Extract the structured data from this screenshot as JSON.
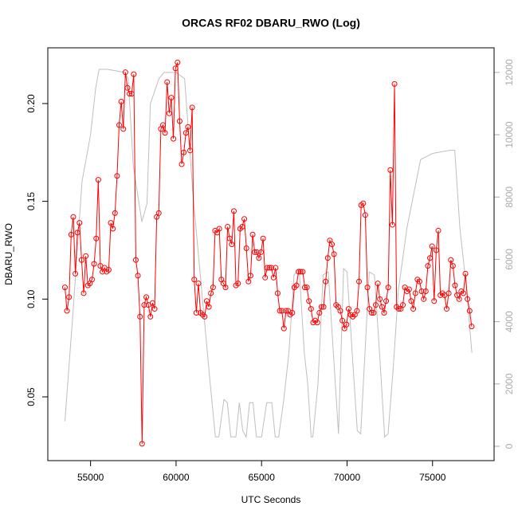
{
  "chart_data": {
    "type": "line",
    "title": "ORCAS RF02 DBARU_RWO (Log)",
    "x_label": "UTC Seconds",
    "y_label": "DBARU_RWO",
    "xlim": [
      52500,
      78600
    ],
    "ylim": [
      0.0174,
      0.2285
    ],
    "y2lim": [
      -460,
      12790
    ],
    "xticks": [
      55000,
      60000,
      65000,
      70000,
      75000
    ],
    "yticks": [
      0.05,
      {
        "value": 0.1,
        "label": "0.10"
      },
      0.15,
      {
        "value": 0.2,
        "label": "0.20"
      }
    ],
    "y2ticks": [
      0,
      2000,
      4000,
      6000,
      8000,
      10000,
      12000
    ],
    "series": [
      {
        "color": "#ff0000",
        "markers": true,
        "x": [
          53500,
          53622,
          53744,
          53866,
          53988,
          54110,
          54232,
          54354,
          54476,
          54598,
          54720,
          54842,
          54964,
          55086,
          55208,
          55330,
          55452,
          55574,
          55696,
          55818,
          55940,
          56062,
          56184,
          56306,
          56428,
          56550,
          56672,
          56794,
          56916,
          57038,
          57160,
          57282,
          57404,
          57526,
          57648,
          57770,
          57892,
          58014,
          58136,
          58258,
          58380,
          58502,
          58624,
          58746,
          58868,
          58990,
          59112,
          59234,
          59356,
          59478,
          59600,
          59722,
          59844,
          59966,
          60088,
          60210,
          60332,
          60454,
          60576,
          60698,
          60820,
          60942,
          61064,
          61186,
          61308,
          61430,
          61552,
          61674,
          61796,
          61918,
          62040,
          62162,
          62284,
          62406,
          62528,
          62650,
          62772,
          62894,
          63016,
          63138,
          63260,
          63382,
          63504,
          63626,
          63748,
          63870,
          63992,
          64114,
          64236,
          64358,
          64480,
          64602,
          64724,
          64846,
          64968,
          65090,
          65212,
          65334,
          65456,
          65578,
          65700,
          65822,
          65944,
          66066,
          66188,
          66310,
          66432,
          66554,
          66676,
          66798,
          66920,
          67042,
          67164,
          67286,
          67408,
          67530,
          67652,
          67774,
          67896,
          68018,
          68140,
          68262,
          68384,
          68506,
          68628,
          68750,
          68872,
          68994,
          69116,
          69238,
          69360,
          69482,
          69604,
          69726,
          69848,
          69970,
          70092,
          70214,
          70336,
          70458,
          70580,
          70702,
          70824,
          70946,
          71068,
          71190,
          71312,
          71434,
          71556,
          71678,
          71800,
          71922,
          72044,
          72166,
          72288,
          72410,
          72532,
          72654,
          72776,
          72898,
          73020,
          73142,
          73264,
          73386,
          73508,
          73630,
          73752,
          73874,
          73996,
          74118,
          74240,
          74362,
          74484,
          74606,
          74728,
          74850,
          74972,
          75094,
          75216,
          75338,
          75460,
          75582,
          75704,
          75826,
          75948,
          76070,
          76192,
          76314,
          76436,
          76558,
          76680,
          76802,
          76924,
          77046,
          77168,
          77290
        ],
        "values": [
          0.106,
          0.094,
          0.101,
          0.133,
          0.142,
          0.113,
          0.134,
          0.139,
          0.12,
          0.103,
          0.122,
          0.107,
          0.108,
          0.11,
          0.118,
          0.131,
          0.161,
          0.117,
          0.114,
          0.116,
          0.114,
          0.115,
          0.139,
          0.136,
          0.144,
          0.163,
          0.189,
          0.201,
          0.187,
          0.216,
          0.208,
          0.205,
          0.205,
          0.215,
          0.12,
          0.112,
          0.091,
          0.026,
          0.097,
          0.101,
          0.097,
          0.091,
          0.098,
          0.095,
          0.142,
          0.144,
          0.187,
          0.189,
          0.185,
          0.211,
          0.195,
          0.203,
          0.182,
          0.218,
          0.221,
          0.191,
          0.169,
          0.175,
          0.185,
          0.188,
          0.176,
          0.198,
          0.11,
          0.093,
          0.108,
          0.093,
          0.092,
          0.091,
          0.099,
          0.096,
          0.103,
          0.106,
          0.135,
          0.134,
          0.136,
          0.11,
          0.108,
          0.106,
          0.137,
          0.131,
          0.128,
          0.145,
          0.107,
          0.108,
          0.136,
          0.137,
          0.141,
          0.126,
          0.109,
          0.112,
          0.133,
          0.124,
          0.124,
          0.121,
          0.124,
          0.131,
          0.111,
          0.116,
          0.116,
          0.116,
          0.111,
          0.116,
          0.103,
          0.094,
          0.094,
          0.085,
          0.094,
          0.094,
          0.092,
          0.093,
          0.106,
          0.107,
          0.114,
          0.114,
          0.114,
          0.106,
          0.106,
          0.099,
          0.095,
          0.088,
          0.089,
          0.088,
          0.093,
          0.096,
          0.096,
          0.109,
          0.121,
          0.13,
          0.128,
          0.123,
          0.097,
          0.096,
          0.094,
          0.089,
          0.085,
          0.087,
          0.095,
          0.092,
          0.091,
          0.092,
          0.094,
          0.109,
          0.148,
          0.149,
          0.143,
          0.106,
          0.095,
          0.093,
          0.093,
          0.097,
          0.108,
          0.1,
          0.096,
          0.093,
          0.099,
          0.106,
          0.166,
          0.138,
          0.21,
          0.096,
          0.095,
          0.095,
          0.097,
          0.106,
          0.104,
          0.105,
          0.099,
          0.095,
          0.103,
          0.11,
          0.109,
          0.104,
          0.1,
          0.104,
          0.117,
          0.121,
          0.127,
          0.099,
          0.125,
          0.135,
          0.102,
          0.103,
          0.102,
          0.095,
          0.103,
          0.12,
          0.117,
          0.107,
          0.102,
          0.1,
          0.104,
          0.103,
          0.113,
          0.1,
          0.094,
          0.086
        ]
      },
      {
        "color": "#bebebe",
        "axis": "y2",
        "markers": false,
        "x": [
          53500,
          54000,
          54500,
          55000,
          55300,
          55500,
          56000,
          57000,
          57200,
          57500,
          58000,
          58300,
          58500,
          59000,
          59300,
          60000,
          60500,
          61000,
          61500,
          62000,
          62300,
          62500,
          62800,
          63000,
          63200,
          63500,
          63700,
          63900,
          64100,
          64300,
          64500,
          64700,
          65000,
          65300,
          65600,
          65800,
          66000,
          66300,
          66600,
          66900,
          67200,
          67500,
          67700,
          67900,
          68000,
          68300,
          68600,
          68900,
          69200,
          69500,
          69800,
          70000,
          70300,
          70600,
          70800,
          71000,
          71300,
          71600,
          71900,
          72200,
          72400,
          72700,
          73000,
          73500,
          74300,
          75000,
          76000,
          76300,
          76600,
          77000,
          77300
        ],
        "values": [
          800,
          4500,
          8500,
          10000,
          11500,
          12100,
          12100,
          12000,
          11800,
          9000,
          7200,
          7800,
          11000,
          11800,
          12000,
          12000,
          11800,
          8000,
          5000,
          2000,
          300,
          300,
          1500,
          1400,
          300,
          300,
          1400,
          500,
          300,
          1400,
          1400,
          300,
          300,
          1400,
          1400,
          300,
          300,
          1500,
          3000,
          5500,
          5700,
          3000,
          2000,
          300,
          300,
          2000,
          5500,
          5600,
          3000,
          400,
          5700,
          5600,
          3000,
          500,
          400,
          2500,
          5600,
          5500,
          3000,
          300,
          400,
          2500,
          5000,
          7000,
          9200,
          9400,
          9500,
          9500,
          7000,
          5000,
          3000
        ]
      }
    ]
  }
}
